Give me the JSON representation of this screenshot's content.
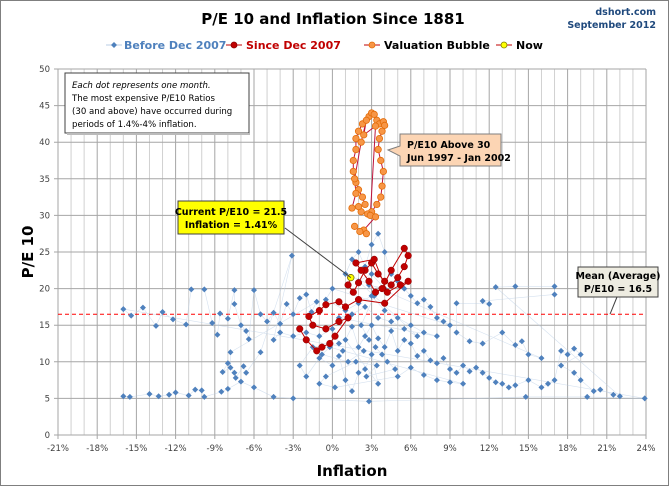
{
  "chart_data": {
    "type": "scatter",
    "title": "P/E 10 and Inflation Since 1881",
    "source": "dshort.com",
    "date": "September 2012",
    "xlabel": "Inflation",
    "ylabel": "P/E 10",
    "xlim": [
      -21,
      24
    ],
    "ylim": [
      0,
      50
    ],
    "x_ticks": [
      "-21%",
      "-18%",
      "-15%",
      "-12%",
      "-9%",
      "-6%",
      "-3%",
      "0%",
      "3%",
      "6%",
      "9%",
      "12%",
      "15%",
      "18%",
      "21%",
      "24%"
    ],
    "x_tick_values": [
      -21,
      -18,
      -15,
      -12,
      -9,
      -6,
      -3,
      0,
      3,
      6,
      9,
      12,
      15,
      18,
      21,
      24
    ],
    "y_ticks": [
      0,
      5,
      10,
      15,
      20,
      25,
      30,
      35,
      40,
      45,
      50
    ],
    "grid": true,
    "legend_position": "top",
    "legend": [
      {
        "name": "Before Dec 2007",
        "color": "#4f81bd"
      },
      {
        "name": "Since Dec 2007",
        "color": "#c00000"
      },
      {
        "name": "Valuation Bubble",
        "color": "#f79646"
      },
      {
        "name": "Now",
        "color": "#ffff00"
      }
    ],
    "mean_line": {
      "value": 16.5,
      "color": "#ff0000"
    },
    "annotations": {
      "note": [
        "Each dot represents one month.",
        "The most expensive P/E10 Ratios",
        "(30 and above) have occurred during",
        "periods of 1.4%-4% inflation."
      ],
      "bubble": [
        "P/E10 Above 30",
        "Jun 1997  - Jan 2002"
      ],
      "current": [
        "Current P/E10 = 21.5",
        "Inflation = 1.41%"
      ],
      "mean": [
        "Mean (Average)",
        "P/E10 = 16.5"
      ]
    },
    "series": [
      {
        "name": "Before Dec 2007",
        "points": [
          [
            -16,
            5.3
          ],
          [
            -15.5,
            5.2
          ],
          [
            -14,
            5.6
          ],
          [
            -13.3,
            5.3
          ],
          [
            -12.5,
            5.5
          ],
          [
            -12,
            5.8
          ],
          [
            -11,
            5.4
          ],
          [
            -10.5,
            6.2
          ],
          [
            -10,
            6.1
          ],
          [
            -9.8,
            5.2
          ],
          [
            -8.5,
            5.9
          ],
          [
            -8,
            6.3
          ],
          [
            -7,
            7.3
          ],
          [
            -6,
            6.5
          ],
          [
            -4.5,
            5.2
          ],
          [
            -3,
            5.0
          ],
          [
            2.8,
            4.6
          ],
          [
            14.8,
            5.2
          ],
          [
            19.5,
            5.2
          ],
          [
            23.9,
            5.0
          ],
          [
            -16,
            17.2
          ],
          [
            -15.4,
            16.3
          ],
          [
            -14.5,
            17.4
          ],
          [
            -13.5,
            14.9
          ],
          [
            -13,
            16.8
          ],
          [
            -12.2,
            15.8
          ],
          [
            -11.2,
            15.1
          ],
          [
            -10.8,
            19.9
          ],
          [
            -9.8,
            19.9
          ],
          [
            -9.2,
            15.3
          ],
          [
            -8.8,
            13.7
          ],
          [
            -8.6,
            16.6
          ],
          [
            -8,
            15.9
          ],
          [
            -7.5,
            19.8
          ],
          [
            -7.5,
            17.9
          ],
          [
            -7,
            15.0
          ],
          [
            -6.6,
            14.2
          ],
          [
            -6.4,
            13.1
          ],
          [
            -6,
            19.8
          ],
          [
            -5.5,
            16.5
          ],
          [
            -5,
            15.5
          ],
          [
            -4.5,
            16.7
          ],
          [
            -4,
            15.2
          ],
          [
            -3.5,
            17.9
          ],
          [
            -3,
            16.5
          ],
          [
            -2.5,
            18.7
          ],
          [
            -2,
            19.2
          ],
          [
            -1.6,
            16.8
          ],
          [
            -1.2,
            18.2
          ],
          [
            -7.8,
            11.3
          ],
          [
            -7.8,
            9.2
          ],
          [
            -8.4,
            8.6
          ],
          [
            -8,
            9.8
          ],
          [
            -7.5,
            8.5
          ],
          [
            -7.4,
            7.8
          ],
          [
            -6.8,
            9.4
          ],
          [
            -6.6,
            8.5
          ],
          [
            -5.5,
            11.3
          ],
          [
            -3.1,
            24.5
          ],
          [
            -4.5,
            13.0
          ],
          [
            -4,
            14.0
          ],
          [
            -3,
            13.5
          ],
          [
            -2,
            14.0
          ],
          [
            -1,
            13.5
          ],
          [
            0,
            14.5
          ],
          [
            0.5,
            12.5
          ],
          [
            -1.5,
            12.0
          ],
          [
            -2.5,
            9.5
          ],
          [
            -2,
            8.0
          ],
          [
            -1,
            10.5
          ],
          [
            0,
            9.5
          ],
          [
            0.5,
            10.8
          ],
          [
            1,
            7.5
          ],
          [
            1.5,
            6.0
          ],
          [
            2,
            8.5
          ],
          [
            2.5,
            9.0
          ],
          [
            3,
            11.0
          ],
          [
            3.5,
            7.0
          ],
          [
            1,
            13.0
          ],
          [
            1.5,
            14.8
          ],
          [
            2,
            12.0
          ],
          [
            2.5,
            13.5
          ],
          [
            3,
            15.0
          ],
          [
            3.5,
            13.2
          ],
          [
            4,
            12.0
          ],
          [
            4.5,
            14.2
          ],
          [
            5,
            11.5
          ],
          [
            5.5,
            13.0
          ],
          [
            6,
            12.5
          ],
          [
            6.5,
            10.8
          ],
          [
            7,
            11.5
          ],
          [
            7.5,
            10.2
          ],
          [
            8,
            9.8
          ],
          [
            8.5,
            10.5
          ],
          [
            9,
            9.0
          ],
          [
            9.5,
            8.5
          ],
          [
            10,
            9.5
          ],
          [
            10.5,
            8.7
          ],
          [
            11,
            9.2
          ],
          [
            11.5,
            8.5
          ],
          [
            12,
            7.8
          ],
          [
            12.5,
            7.2
          ],
          [
            13,
            7.0
          ],
          [
            13.5,
            6.5
          ],
          [
            14,
            6.8
          ],
          [
            15,
            7.5
          ],
          [
            16,
            6.5
          ],
          [
            16.5,
            7.0
          ],
          [
            17,
            7.5
          ],
          [
            17.5,
            11.5
          ],
          [
            18,
            11.0
          ],
          [
            18.5,
            11.8
          ],
          [
            19,
            11.0
          ],
          [
            17.5,
            9.5
          ],
          [
            18.5,
            8.5
          ],
          [
            19,
            7.5
          ],
          [
            20,
            6.0
          ],
          [
            20.5,
            6.2
          ],
          [
            21.5,
            5.5
          ],
          [
            22,
            5.3
          ],
          [
            12.5,
            20.2
          ],
          [
            14,
            20.3
          ],
          [
            17,
            20.3
          ],
          [
            17,
            19.2
          ],
          [
            11.5,
            18.3
          ],
          [
            12,
            17.9
          ],
          [
            9.5,
            18.0
          ],
          [
            9.5,
            14.0
          ],
          [
            10.5,
            12.8
          ],
          [
            11.5,
            12.5
          ],
          [
            13,
            14.0
          ],
          [
            14,
            12.3
          ],
          [
            14.5,
            12.8
          ],
          [
            15,
            11.0
          ],
          [
            16,
            10.5
          ],
          [
            1,
            22
          ],
          [
            1.5,
            24
          ],
          [
            2,
            25
          ],
          [
            2.5,
            23
          ],
          [
            3,
            26
          ],
          [
            3.5,
            27.5
          ],
          [
            4,
            25
          ],
          [
            4.5,
            22
          ],
          [
            5,
            21
          ],
          [
            5.5,
            20
          ],
          [
            6,
            19
          ],
          [
            6.5,
            18
          ],
          [
            7,
            18.5
          ],
          [
            7.5,
            17.5
          ],
          [
            8,
            16
          ],
          [
            8.5,
            15.5
          ],
          [
            9,
            15
          ],
          [
            0,
            20
          ],
          [
            -0.5,
            18.5
          ],
          [
            1,
            17
          ],
          [
            2,
            18
          ],
          [
            3,
            19
          ],
          [
            4,
            17
          ],
          [
            5,
            16
          ],
          [
            6,
            15
          ],
          [
            7,
            14
          ],
          [
            8,
            13.5
          ],
          [
            0.5,
            16
          ],
          [
            1.5,
            16.5
          ],
          [
            2.5,
            17.5
          ],
          [
            3.5,
            16
          ],
          [
            4.5,
            15.5
          ],
          [
            5.5,
            14.5
          ],
          [
            6.5,
            13.5
          ],
          [
            2,
            21
          ],
          [
            3,
            22
          ],
          [
            4,
            20
          ],
          [
            2.8,
            20.5
          ],
          [
            3.2,
            19
          ],
          [
            2.2,
            15
          ],
          [
            2.8,
            13
          ],
          [
            3.3,
            12
          ],
          [
            3.8,
            11
          ],
          [
            4.2,
            10
          ],
          [
            4.8,
            9
          ],
          [
            2.6,
            8
          ],
          [
            3.4,
            9.5
          ],
          [
            1.8,
            10
          ],
          [
            -0.5,
            8
          ],
          [
            -1,
            7
          ],
          [
            0.2,
            6.5
          ],
          [
            5,
            8
          ],
          [
            6,
            9.2
          ],
          [
            7,
            8.2
          ],
          [
            8,
            7.5
          ],
          [
            9,
            7.2
          ],
          [
            10,
            7
          ],
          [
            0.8,
            11.5
          ],
          [
            -0.2,
            12
          ],
          [
            -0.8,
            11
          ],
          [
            1.2,
            10
          ],
          [
            2.4,
            11.5
          ]
        ]
      },
      {
        "name": "Since Dec 2007",
        "points": [
          [
            1.4,
            21.5
          ],
          [
            1.2,
            20.5
          ],
          [
            1.6,
            19.5
          ],
          [
            2.0,
            20.8
          ],
          [
            2.5,
            22.5
          ],
          [
            3.0,
            23.5
          ],
          [
            3.5,
            22.0
          ],
          [
            4.0,
            21.0
          ],
          [
            4.5,
            20.5
          ],
          [
            5.0,
            21.5
          ],
          [
            5.5,
            23.0
          ],
          [
            5.8,
            24.5
          ],
          [
            5.5,
            25.5
          ],
          [
            4.5,
            22.5
          ],
          [
            3.8,
            20.0
          ],
          [
            3.3,
            19.5
          ],
          [
            2.8,
            21.0
          ],
          [
            2.2,
            22.5
          ],
          [
            1.8,
            23.5
          ],
          [
            3.2,
            24.0
          ],
          [
            4.2,
            19.5
          ],
          [
            5.2,
            20.5
          ],
          [
            5.8,
            21.0
          ],
          [
            4.0,
            18.0
          ],
          [
            2.0,
            18.5
          ],
          [
            1.0,
            17.5
          ],
          [
            0.5,
            18.2
          ],
          [
            -0.5,
            17.8
          ],
          [
            -1.0,
            17.0
          ],
          [
            -1.8,
            16.2
          ],
          [
            -1.5,
            15.0
          ],
          [
            -0.5,
            14.5
          ],
          [
            0.5,
            15.5
          ],
          [
            1.2,
            16.0
          ],
          [
            0.2,
            13.5
          ],
          [
            -0.2,
            12.5
          ],
          [
            -0.8,
            12.0
          ],
          [
            -1.2,
            11.5
          ],
          [
            -2,
            13
          ],
          [
            -2.5,
            14.5
          ]
        ]
      },
      {
        "name": "Valuation Bubble",
        "points": [
          [
            2.5,
            31.5
          ],
          [
            2.3,
            32.5
          ],
          [
            2.0,
            33.5
          ],
          [
            1.8,
            34.5
          ],
          [
            1.6,
            36
          ],
          [
            1.6,
            37.5
          ],
          [
            1.8,
            39
          ],
          [
            1.8,
            40.5
          ],
          [
            2.0,
            41.5
          ],
          [
            2.3,
            42.5
          ],
          [
            2.8,
            43.5
          ],
          [
            3.0,
            44
          ],
          [
            3.2,
            43.8
          ],
          [
            3.4,
            43
          ],
          [
            3.6,
            42.5
          ],
          [
            3.9,
            42.8
          ],
          [
            4.0,
            42.3
          ],
          [
            3.8,
            41.5
          ],
          [
            3.6,
            40.5
          ],
          [
            3.5,
            39
          ],
          [
            3.7,
            37.5
          ],
          [
            3.9,
            36
          ],
          [
            3.8,
            34
          ],
          [
            3.7,
            32.5
          ],
          [
            3.4,
            31.5
          ],
          [
            3.0,
            30.5
          ],
          [
            2.7,
            30.2
          ],
          [
            2.2,
            30.5
          ],
          [
            2.0,
            31.2
          ],
          [
            1.5,
            31
          ],
          [
            1.8,
            33
          ],
          [
            1.7,
            35
          ],
          [
            2.2,
            40
          ],
          [
            2.6,
            43
          ],
          [
            2.4,
            41
          ],
          [
            3.3,
            42.2
          ],
          [
            2.9,
            30
          ],
          [
            3.3,
            29.8
          ],
          [
            2.4,
            28
          ],
          [
            2.6,
            27.5
          ],
          [
            2.1,
            27.8
          ],
          [
            1.7,
            28.5
          ]
        ]
      },
      {
        "name": "Now",
        "points": [
          [
            1.41,
            21.5
          ]
        ]
      }
    ]
  }
}
